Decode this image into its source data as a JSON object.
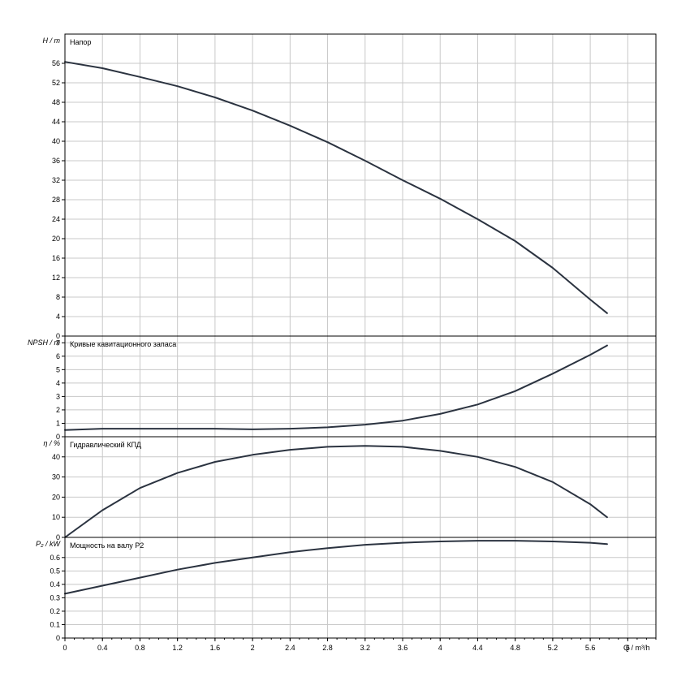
{
  "chart_data": {
    "type": "line",
    "x_axis": {
      "label": "Q / m³/h",
      "range": [
        0,
        6.3
      ],
      "ticks": [
        "0",
        "0.4",
        "0.8",
        "1.2",
        "1.6",
        "2",
        "2.4",
        "2.8",
        "3.2",
        "3.6",
        "4",
        "4.4",
        "4.8",
        "5.2",
        "5.6",
        "6"
      ]
    },
    "panels": [
      {
        "title": "Напор",
        "ylabel": "H / m",
        "ylim": [
          0,
          62
        ],
        "yticks": [
          "0",
          "4",
          "8",
          "12",
          "16",
          "20",
          "24",
          "28",
          "32",
          "36",
          "40",
          "44",
          "48",
          "52",
          "56"
        ],
        "series": [
          {
            "x": [
              0,
              0.4,
              0.8,
              1.2,
              1.6,
              2.0,
              2.4,
              2.8,
              3.2,
              3.6,
              4.0,
              4.4,
              4.8,
              5.2,
              5.6,
              5.78
            ],
            "y": [
              56.3,
              55.0,
              53.2,
              51.3,
              49.0,
              46.3,
              43.2,
              39.8,
              36.0,
              32.0,
              28.2,
              24.0,
              19.5,
              14.0,
              7.5,
              4.7
            ]
          }
        ]
      },
      {
        "title": "Кривые кавитационного запаса",
        "ylabel": "NPSH / m",
        "ylim": [
          0,
          7.5
        ],
        "yticks": [
          "0",
          "1",
          "2",
          "3",
          "4",
          "5",
          "6",
          "7"
        ],
        "series": [
          {
            "x": [
              0,
              0.4,
              0.8,
              1.2,
              1.6,
              2.0,
              2.4,
              2.8,
              3.2,
              3.6,
              4.0,
              4.4,
              4.8,
              5.2,
              5.6,
              5.78
            ],
            "y": [
              0.5,
              0.6,
              0.6,
              0.6,
              0.6,
              0.55,
              0.6,
              0.7,
              0.9,
              1.2,
              1.7,
              2.4,
              3.4,
              4.7,
              6.1,
              6.8
            ]
          }
        ]
      },
      {
        "title": "Гидравлический КПД",
        "ylabel": "η / %",
        "ylim": [
          0,
          50
        ],
        "yticks": [
          "0",
          "10",
          "20",
          "30",
          "40"
        ],
        "series": [
          {
            "x": [
              0,
              0.4,
              0.8,
              1.2,
              1.6,
              2.0,
              2.4,
              2.8,
              3.2,
              3.6,
              4.0,
              4.4,
              4.8,
              5.2,
              5.6,
              5.78
            ],
            "y": [
              0,
              13.5,
              24.5,
              32,
              37.5,
              41,
              43.5,
              45,
              45.5,
              45,
              43,
              40,
              35,
              27.5,
              16.5,
              10
            ]
          }
        ]
      },
      {
        "title": "Мощность на валу P2",
        "ylabel": "P₂ / kW",
        "ylim": [
          0,
          0.75
        ],
        "yticks": [
          "0",
          "0.1",
          "0.2",
          "0.3",
          "0.4",
          "0.5",
          "0.6"
        ],
        "series": [
          {
            "x": [
              0,
              0.4,
              0.8,
              1.2,
              1.6,
              2.0,
              2.4,
              2.8,
              3.2,
              3.6,
              4.0,
              4.4,
              4.8,
              5.2,
              5.6,
              5.78
            ],
            "y": [
              0.33,
              0.39,
              0.45,
              0.51,
              0.56,
              0.6,
              0.64,
              0.67,
              0.695,
              0.71,
              0.72,
              0.725,
              0.725,
              0.72,
              0.71,
              0.7
            ]
          }
        ]
      }
    ],
    "grid": true,
    "line_color": "#2b3340"
  }
}
